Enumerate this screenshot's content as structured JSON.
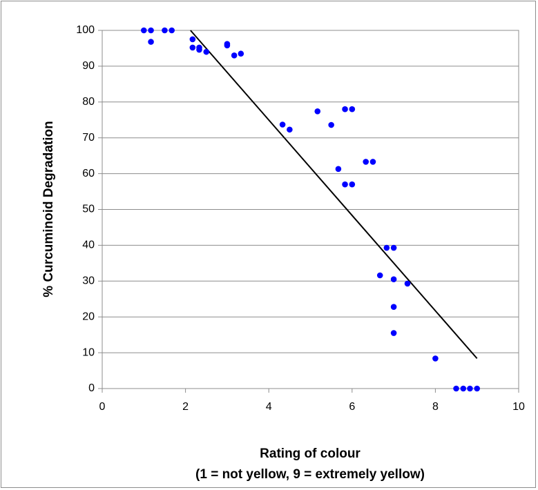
{
  "chart_data": {
    "type": "scatter",
    "title": "",
    "xlabel": "Rating of colour",
    "xlabel_line2": "(1 = not yellow, 9 = extremely yellow)",
    "ylabel": "% Curcuminoid Degradation",
    "xlim": [
      0,
      10
    ],
    "ylim": [
      0,
      100
    ],
    "x_ticks": [
      0,
      2,
      4,
      6,
      8,
      10
    ],
    "y_ticks": [
      0,
      10,
      20,
      30,
      40,
      50,
      60,
      70,
      80,
      90,
      100
    ],
    "grid": "horizontal",
    "legend": "none",
    "colors": {
      "points": "#0000ff",
      "trendline": "#000000",
      "grid": "#8c8c8c"
    },
    "points": [
      {
        "x": 1.0,
        "y": 100
      },
      {
        "x": 1.17,
        "y": 100
      },
      {
        "x": 1.17,
        "y": 96.8
      },
      {
        "x": 1.5,
        "y": 100
      },
      {
        "x": 1.67,
        "y": 100
      },
      {
        "x": 2.17,
        "y": 97.5
      },
      {
        "x": 2.17,
        "y": 95.2
      },
      {
        "x": 2.33,
        "y": 95.2
      },
      {
        "x": 2.33,
        "y": 94.6
      },
      {
        "x": 2.5,
        "y": 94.0
      },
      {
        "x": 3.0,
        "y": 96.2
      },
      {
        "x": 3.0,
        "y": 95.8
      },
      {
        "x": 3.17,
        "y": 93.0
      },
      {
        "x": 3.33,
        "y": 93.5
      },
      {
        "x": 4.33,
        "y": 73.7
      },
      {
        "x": 4.5,
        "y": 72.3
      },
      {
        "x": 5.17,
        "y": 77.4
      },
      {
        "x": 5.5,
        "y": 73.6
      },
      {
        "x": 5.67,
        "y": 61.3
      },
      {
        "x": 5.83,
        "y": 78.0
      },
      {
        "x": 5.83,
        "y": 57.0
      },
      {
        "x": 6.0,
        "y": 78.0
      },
      {
        "x": 6.0,
        "y": 57.0
      },
      {
        "x": 6.33,
        "y": 63.3
      },
      {
        "x": 6.5,
        "y": 63.3
      },
      {
        "x": 6.67,
        "y": 31.6
      },
      {
        "x": 6.83,
        "y": 39.3
      },
      {
        "x": 7.0,
        "y": 39.3
      },
      {
        "x": 7.0,
        "y": 30.5
      },
      {
        "x": 7.0,
        "y": 22.8
      },
      {
        "x": 7.0,
        "y": 15.5
      },
      {
        "x": 7.33,
        "y": 29.3
      },
      {
        "x": 8.0,
        "y": 8.4
      },
      {
        "x": 8.5,
        "y": 0
      },
      {
        "x": 8.67,
        "y": 0
      },
      {
        "x": 8.83,
        "y": 0
      },
      {
        "x": 9.0,
        "y": 0
      }
    ],
    "trendline": {
      "x": [
        2.12,
        9.0
      ],
      "y": [
        100,
        8.4
      ]
    }
  }
}
